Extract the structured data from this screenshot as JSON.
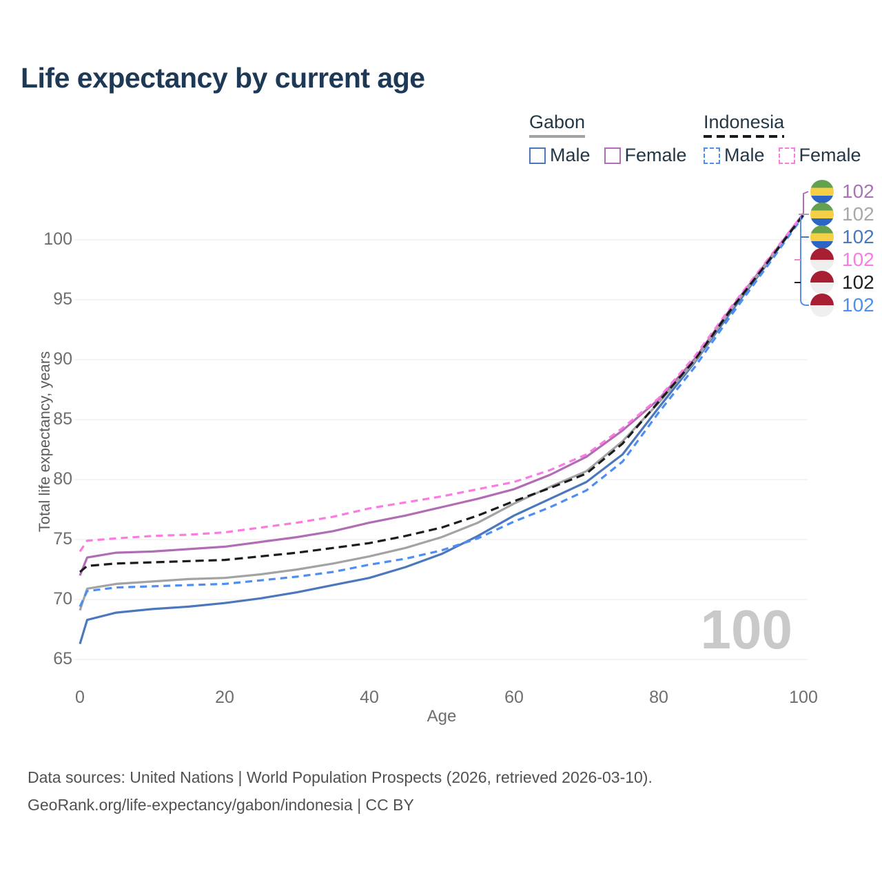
{
  "title": "Life expectancy by current age",
  "watermark": "100",
  "legend": {
    "groups": [
      {
        "label": "Gabon",
        "line_style": "solid",
        "underline_color": "#a3a3a3",
        "items": [
          {
            "label": "Male",
            "series": 0
          },
          {
            "label": "Female",
            "series": 1
          }
        ]
      },
      {
        "label": "Indonesia",
        "line_style": "dashed",
        "underline_color": "#1a1a1a",
        "items": [
          {
            "label": "Male",
            "series": 3
          },
          {
            "label": "Female",
            "series": 4
          }
        ]
      }
    ]
  },
  "end_labels": [
    {
      "flag": "gabon",
      "value": "102",
      "color": "#a974b3"
    },
    {
      "flag": "gabon",
      "value": "102",
      "color": "#a8a8a8"
    },
    {
      "flag": "gabon",
      "value": "102",
      "color": "#4b77bd"
    },
    {
      "flag": "indonesia",
      "value": "102",
      "color": "#fb7be2"
    },
    {
      "flag": "indonesia",
      "value": "102",
      "color": "#1f1f1f"
    },
    {
      "flag": "indonesia",
      "value": "102",
      "color": "#4a90f0"
    }
  ],
  "leader": {
    "bracket_color": "#5b8eea"
  },
  "footer": {
    "line1": "Data sources: United Nations | World Population Prospects (2026, retrieved 2026-03-10).",
    "line2": "GeoRank.org/life-expectancy/gabon/indonesia | CC BY"
  },
  "chart_data": {
    "type": "line",
    "title": "Life expectancy by current age",
    "xlabel": "Age",
    "ylabel": "Total life expectancy, years",
    "xlim": [
      0,
      100
    ],
    "ylim": [
      65,
      103
    ],
    "x_ticks": [
      0,
      20,
      40,
      60,
      80,
      100
    ],
    "y_ticks": [
      65,
      70,
      75,
      80,
      85,
      90,
      95,
      100
    ],
    "grid": "horizontal",
    "legend_position": "top-right",
    "end_value": 102,
    "ages": [
      0,
      1,
      5,
      10,
      15,
      20,
      25,
      30,
      35,
      40,
      45,
      50,
      55,
      60,
      65,
      70,
      75,
      80,
      85,
      90,
      95,
      100
    ],
    "series": [
      {
        "name": "Gabon Male",
        "key": "gabon-male",
        "color": "#4b77bd",
        "line_style": "solid",
        "values": [
          66.3,
          68.3,
          68.9,
          69.2,
          69.4,
          69.7,
          70.1,
          70.6,
          71.2,
          71.8,
          72.7,
          73.8,
          75.3,
          77.0,
          78.4,
          79.8,
          82.1,
          86.0,
          89.8,
          94.0,
          98.0,
          102.1
        ]
      },
      {
        "name": "Gabon Female",
        "key": "gabon-female",
        "color": "#b06cb4",
        "line_style": "solid",
        "values": [
          72.0,
          73.5,
          73.9,
          74.0,
          74.2,
          74.4,
          74.8,
          75.2,
          75.7,
          76.4,
          77.0,
          77.7,
          78.4,
          79.2,
          80.4,
          81.9,
          84.1,
          86.7,
          90.1,
          94.3,
          98.2,
          102.2
        ]
      },
      {
        "name": "Gabon (both sexes)",
        "key": "gabon-total",
        "color": "#a3a3a3",
        "line_style": "solid",
        "values": [
          69.1,
          70.9,
          71.3,
          71.5,
          71.7,
          71.8,
          72.1,
          72.5,
          73.0,
          73.6,
          74.3,
          75.2,
          76.4,
          78.0,
          79.4,
          80.7,
          83.2,
          86.4,
          89.9,
          94.2,
          98.1,
          102.1
        ]
      },
      {
        "name": "Indonesia Male",
        "key": "indonesia-male",
        "color": "#4d8ef5",
        "line_style": "dashed",
        "values": [
          69.4,
          70.7,
          71.0,
          71.1,
          71.2,
          71.3,
          71.6,
          71.9,
          72.3,
          72.9,
          73.4,
          74.1,
          75.1,
          76.5,
          77.7,
          79.1,
          81.5,
          85.6,
          89.4,
          93.7,
          97.8,
          102.0
        ]
      },
      {
        "name": "Indonesia Female",
        "key": "indonesia-female",
        "color": "#fb7be2",
        "line_style": "dashed",
        "values": [
          74.0,
          74.9,
          75.1,
          75.3,
          75.4,
          75.6,
          76.0,
          76.4,
          76.9,
          77.6,
          78.1,
          78.6,
          79.2,
          79.8,
          80.8,
          82.1,
          84.3,
          86.8,
          90.3,
          94.4,
          98.3,
          102.2
        ]
      },
      {
        "name": "Indonesia (both sexes)",
        "key": "indonesia-total",
        "color": "#1c1c1c",
        "line_style": "dashed",
        "values": [
          72.3,
          72.8,
          73.0,
          73.1,
          73.2,
          73.3,
          73.6,
          73.9,
          74.3,
          74.7,
          75.3,
          76.0,
          77.0,
          78.2,
          79.3,
          80.5,
          83.0,
          86.5,
          90.0,
          94.2,
          98.1,
          102.1
        ]
      }
    ]
  }
}
